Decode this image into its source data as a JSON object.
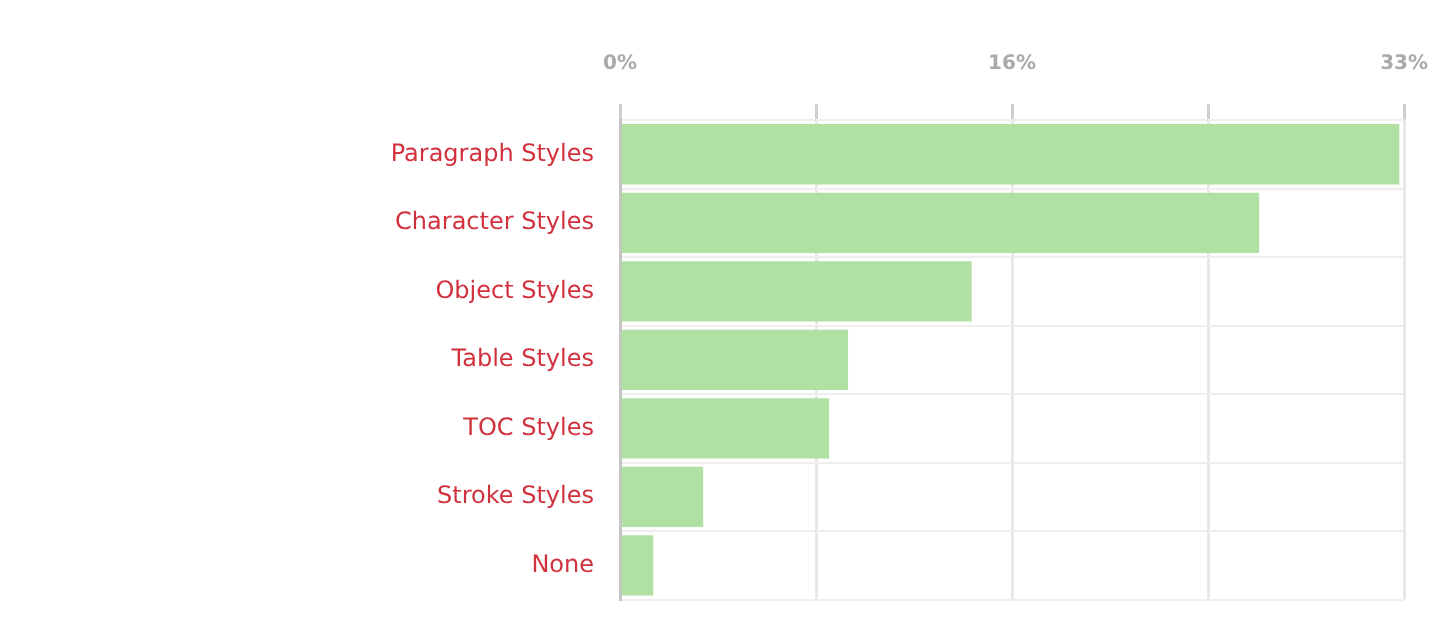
{
  "chart_data": {
    "type": "bar",
    "orientation": "horizontal",
    "categories": [
      "Paragraph Styles",
      "Character Styles",
      "Object Styles",
      "Table Styles",
      "TOC Styles",
      "Stroke Styles",
      "None"
    ],
    "values": [
      32.8,
      26.9,
      14.8,
      9.6,
      8.8,
      3.5,
      1.4
    ],
    "color": "#b0e0a2",
    "xlim": [
      0,
      33
    ],
    "xticks": [
      {
        "value": 0,
        "label": "0%"
      },
      {
        "value": 8.25,
        "label": null
      },
      {
        "value": 16.5,
        "label": "16%"
      },
      {
        "value": 24.75,
        "label": null
      },
      {
        "value": 33,
        "label": "33%"
      }
    ],
    "grid": true,
    "legend": false
  }
}
